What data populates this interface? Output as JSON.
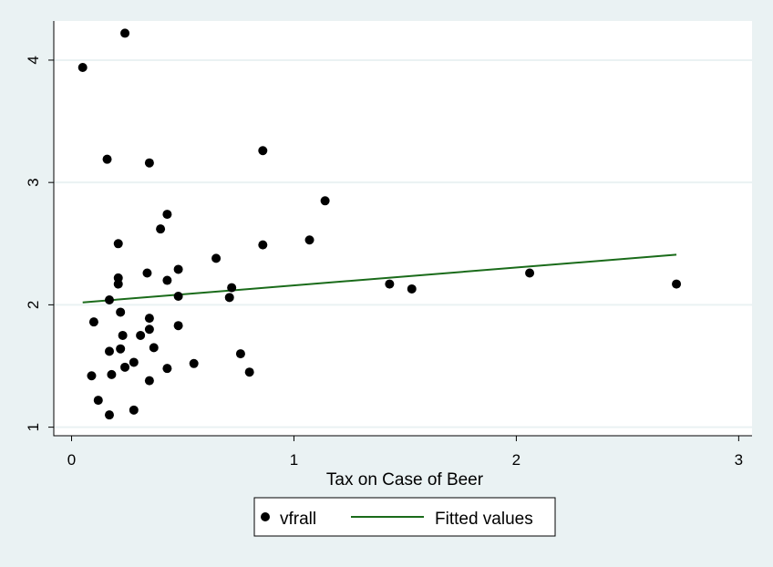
{
  "chart_data": {
    "type": "scatter",
    "xlabel": "Tax on Case of Beer",
    "ylabel": "",
    "xlim": [
      -0.08,
      3.06
    ],
    "ylim": [
      0.93,
      4.32
    ],
    "xticks": [
      0,
      1,
      2,
      3
    ],
    "yticks": [
      1,
      2,
      3,
      4
    ],
    "grid": "horizontal",
    "legend_position": "bottom",
    "colors": {
      "background": "#eaf2f3",
      "plot_area": "#ffffff",
      "gridline": "#eaf2f3",
      "points": "#000000",
      "fit_line": "#1a6b1a"
    },
    "series": [
      {
        "name": "vfrall",
        "type": "scatter",
        "points": [
          [
            0.05,
            3.94
          ],
          [
            0.24,
            4.22
          ],
          [
            0.16,
            3.19
          ],
          [
            0.35,
            3.16
          ],
          [
            0.86,
            3.26
          ],
          [
            1.14,
            2.85
          ],
          [
            0.43,
            2.74
          ],
          [
            0.4,
            2.62
          ],
          [
            0.21,
            2.5
          ],
          [
            0.86,
            2.49
          ],
          [
            1.07,
            2.53
          ],
          [
            0.65,
            2.38
          ],
          [
            0.48,
            2.29
          ],
          [
            0.34,
            2.26
          ],
          [
            0.21,
            2.22
          ],
          [
            0.43,
            2.2
          ],
          [
            0.21,
            2.17
          ],
          [
            1.43,
            2.17
          ],
          [
            1.53,
            2.13
          ],
          [
            0.72,
            2.14
          ],
          [
            2.06,
            2.26
          ],
          [
            2.72,
            2.17
          ],
          [
            0.71,
            2.06
          ],
          [
            0.48,
            2.07
          ],
          [
            0.17,
            2.04
          ],
          [
            0.22,
            1.94
          ],
          [
            0.35,
            1.89
          ],
          [
            0.1,
            1.86
          ],
          [
            0.48,
            1.83
          ],
          [
            0.35,
            1.8
          ],
          [
            0.23,
            1.75
          ],
          [
            0.31,
            1.75
          ],
          [
            0.22,
            1.64
          ],
          [
            0.37,
            1.65
          ],
          [
            0.17,
            1.62
          ],
          [
            0.76,
            1.6
          ],
          [
            0.55,
            1.52
          ],
          [
            0.28,
            1.53
          ],
          [
            0.24,
            1.49
          ],
          [
            0.43,
            1.48
          ],
          [
            0.8,
            1.45
          ],
          [
            0.09,
            1.42
          ],
          [
            0.18,
            1.43
          ],
          [
            0.35,
            1.38
          ],
          [
            0.12,
            1.22
          ],
          [
            0.28,
            1.14
          ],
          [
            0.17,
            1.1
          ]
        ]
      },
      {
        "name": "Fitted values",
        "type": "line",
        "points": [
          [
            0.05,
            2.02
          ],
          [
            2.72,
            2.41
          ]
        ]
      }
    ]
  }
}
